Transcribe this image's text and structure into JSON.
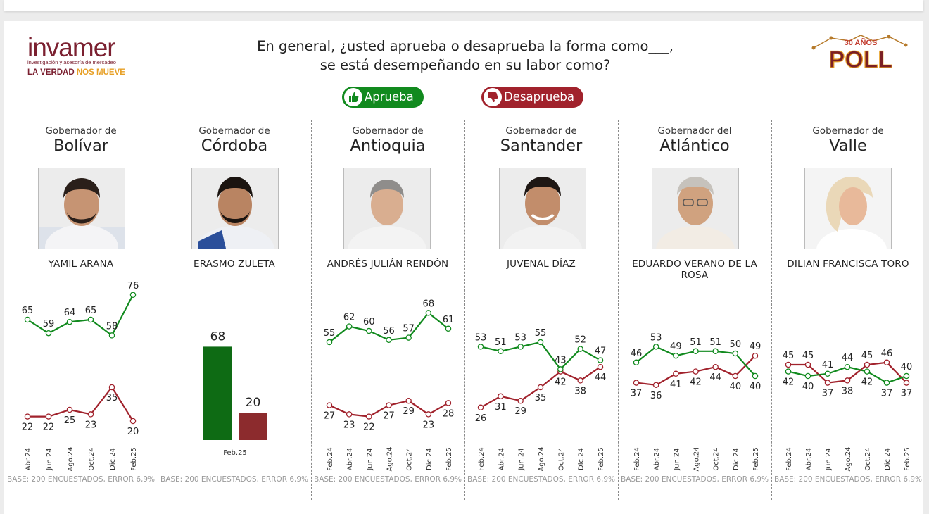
{
  "header": {
    "question_line1": "En general, ¿usted aprueba o desaprueba la forma como___,",
    "question_line2": "se está desempeñando en su labor como?"
  },
  "logo": {
    "name": "invamer",
    "subtitle": "investigación y asesoría de mercadeo",
    "motto_a": "LA VERDAD",
    "motto_b": "NOS MUEVE"
  },
  "badge": {
    "top": "30 AÑOS",
    "main": "POLL"
  },
  "legend": {
    "approve": "Aprueba",
    "disapprove": "Desaprueba"
  },
  "colors": {
    "approve": "#118a1e",
    "disapprove": "#a1222c",
    "bar_approve": "#0e6b14",
    "bar_disapprove": "#8c2b2d"
  },
  "columns": [
    {
      "label": "Gobernador de",
      "state": "Bolívar",
      "name": "YAMIL ARANA",
      "base": "BASE: 200 ENCUESTADOS, ERROR 6,9%"
    },
    {
      "label": "Gobernador de",
      "state": "Córdoba",
      "name": "ERASMO ZULETA",
      "base": "BASE: 200 ENCUESTADOS, ERROR 6,9%"
    },
    {
      "label": "Gobernador de",
      "state": "Antioquia",
      "name": "ANDRÉS JULIÁN RENDÓN",
      "base": "BASE: 200 ENCUESTADOS, ERROR 6,9%"
    },
    {
      "label": "Gobernador de",
      "state": "Santander",
      "name": "JUVENAL DÍAZ",
      "base": "BASE: 200 ENCUESTADOS, ERROR 6,9%"
    },
    {
      "label": "Gobernador del",
      "state": "Atlántico",
      "name": "EDUARDO VERANO DE LA ROSA",
      "base": "BASE: 200 ENCUESTADOS, ERROR 6,9%"
    },
    {
      "label": "Gobernador de",
      "state": "Valle",
      "name": "DILIAN FRANCISCA TORO",
      "base": "BASE: 200 ENCUESTADOS, ERROR 6,9%"
    }
  ],
  "chart_data": [
    {
      "type": "line",
      "categories": [
        "Abr.24",
        "Jun.24",
        "Ago.24",
        "Oct.24",
        "Dic.24",
        "Feb.25"
      ],
      "series": [
        {
          "name": "Aprueba",
          "values": [
            65,
            59,
            64,
            65,
            58,
            76
          ]
        },
        {
          "name": "Desaprueba",
          "values": [
            22,
            22,
            25,
            23,
            35,
            20
          ]
        }
      ]
    },
    {
      "type": "bar",
      "categories": [
        "Feb.25"
      ],
      "series": [
        {
          "name": "Aprueba",
          "values": [
            68
          ]
        },
        {
          "name": "Desaprueba",
          "values": [
            20
          ]
        }
      ]
    },
    {
      "type": "line",
      "categories": [
        "Feb.24",
        "Abr.24",
        "Jun.24",
        "Ago.24",
        "Oct.24",
        "Dic.24",
        "Feb.25"
      ],
      "series": [
        {
          "name": "Aprueba",
          "values": [
            55,
            62,
            60,
            56,
            57,
            68,
            61
          ]
        },
        {
          "name": "Desaprueba",
          "values": [
            27,
            23,
            22,
            27,
            29,
            23,
            28
          ]
        }
      ]
    },
    {
      "type": "line",
      "categories": [
        "Feb.24",
        "Abr.24",
        "Jun.24",
        "Ago.24",
        "Oct.24",
        "Dic.24",
        "Feb.25"
      ],
      "series": [
        {
          "name": "Aprueba",
          "values": [
            53,
            51,
            53,
            55,
            43,
            52,
            47
          ]
        },
        {
          "name": "Desaprueba",
          "values": [
            26,
            31,
            29,
            35,
            42,
            38,
            44
          ]
        }
      ]
    },
    {
      "type": "line",
      "categories": [
        "Feb.24",
        "Abr.24",
        "Jun.24",
        "Ago.24",
        "Oct.24",
        "Dic.24",
        "Feb.25"
      ],
      "series": [
        {
          "name": "Aprueba",
          "values": [
            46,
            53,
            49,
            51,
            51,
            50,
            40
          ]
        },
        {
          "name": "Desaprueba",
          "values": [
            37,
            36,
            41,
            42,
            44,
            40,
            49
          ]
        }
      ]
    },
    {
      "type": "line",
      "categories": [
        "Feb.24",
        "Abr.24",
        "Jun.24",
        "Ago.24",
        "Oct.24",
        "Dic.24",
        "Feb.25"
      ],
      "series": [
        {
          "name": "Aprueba",
          "values": [
            42,
            40,
            41,
            44,
            42,
            37,
            40
          ]
        },
        {
          "name": "Desaprueba",
          "values": [
            45,
            45,
            37,
            38,
            45,
            46,
            37
          ]
        }
      ]
    }
  ]
}
